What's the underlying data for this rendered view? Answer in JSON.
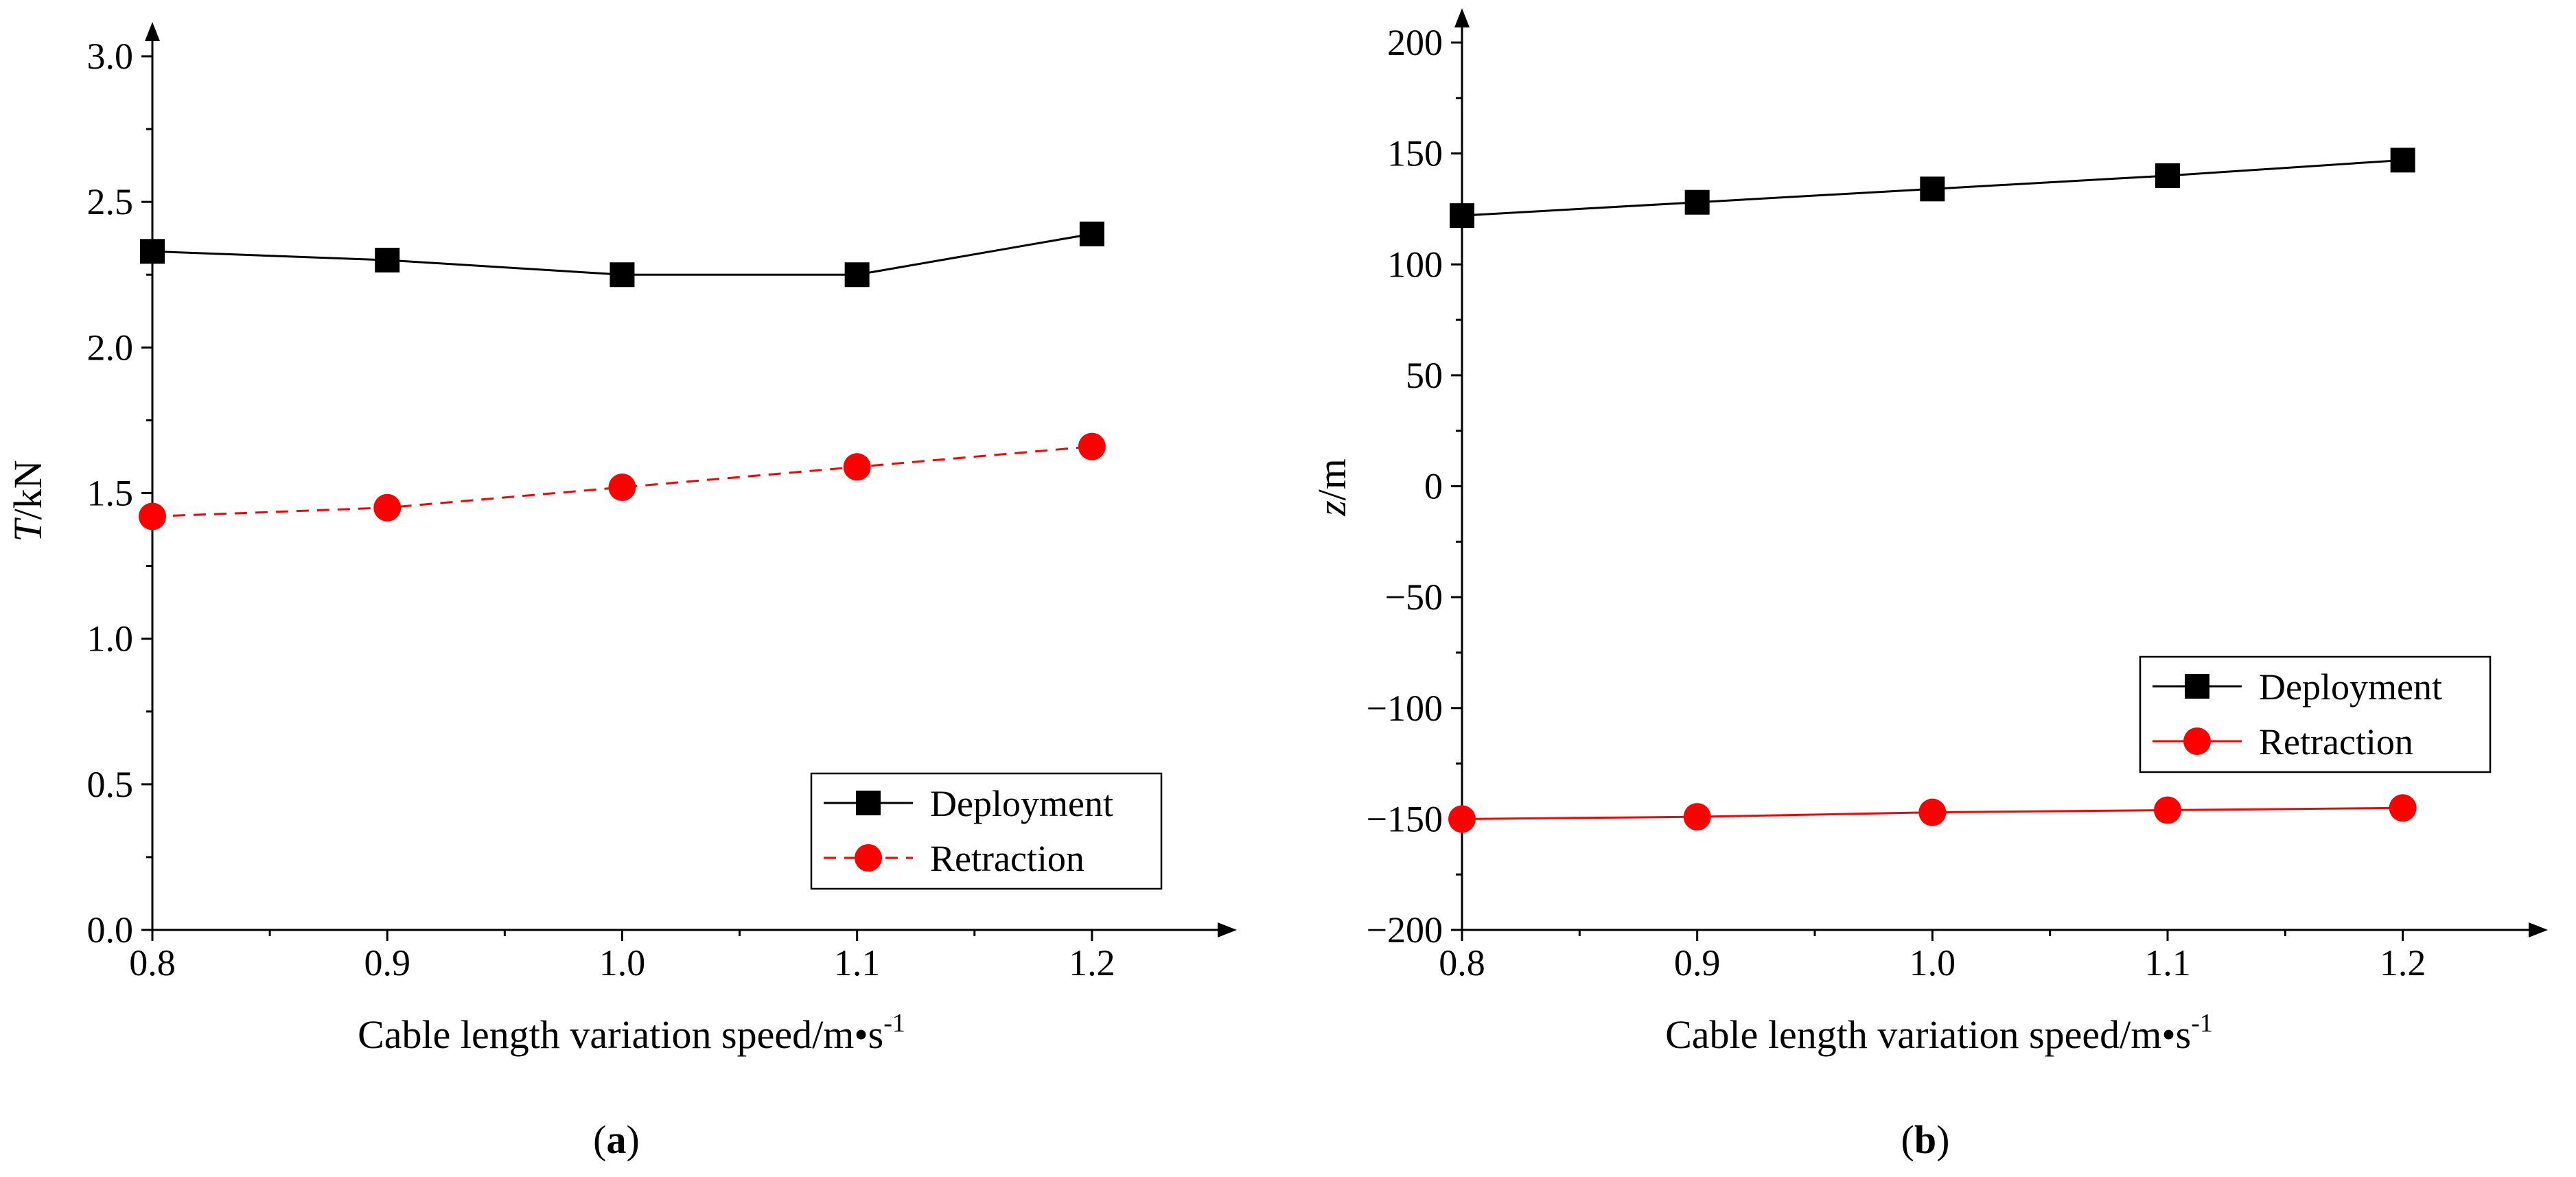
{
  "chart_data": [
    {
      "type": "line",
      "caption": "a",
      "title": "",
      "xlabel": "Cable length variation speed/m•s",
      "xlabel_sup": "-1",
      "ylabel_var": "T",
      "ylabel_unit": "/kN",
      "xlim": [
        0.8,
        1.25
      ],
      "ylim": [
        0.0,
        3.0
      ],
      "xticks": [
        "0.8",
        "0.9",
        "1.0",
        "1.1",
        "1.2"
      ],
      "yticks": [
        "0.0",
        "0.5",
        "1.0",
        "1.5",
        "2.0",
        "2.5",
        "3.0"
      ],
      "x": [
        0.8,
        0.9,
        1.0,
        1.1,
        1.2
      ],
      "series": [
        {
          "name": "Deployment",
          "values": [
            2.33,
            2.3,
            2.25,
            2.25,
            2.39
          ],
          "color": "#000000",
          "marker": "square",
          "dashed": false
        },
        {
          "name": "Retraction",
          "values": [
            1.42,
            1.45,
            1.52,
            1.59,
            1.66
          ],
          "color": "#ff0000",
          "marker": "circle",
          "dashed": true
        }
      ],
      "legend": "bottom-right"
    },
    {
      "type": "line",
      "caption": "b",
      "title": "",
      "xlabel": "Cable length variation speed/m•s",
      "xlabel_sup": "-1",
      "ylabel_var": "z",
      "ylabel_unit": "/m",
      "xlim": [
        0.8,
        1.25
      ],
      "ylim": [
        -200,
        200
      ],
      "xticks": [
        "0.8",
        "0.9",
        "1.0",
        "1.1",
        "1.2"
      ],
      "yticks": [
        "−200",
        "−150",
        "−100",
        "−50",
        "0",
        "50",
        "100",
        "150",
        "200"
      ],
      "x": [
        0.8,
        0.9,
        1.0,
        1.1,
        1.2
      ],
      "series": [
        {
          "name": "Deployment",
          "values": [
            122,
            128,
            134,
            140,
            147
          ],
          "color": "#000000",
          "marker": "square",
          "dashed": false
        },
        {
          "name": "Retraction",
          "values": [
            -150,
            -149,
            -147,
            -146,
            -145
          ],
          "color": "#ff0000",
          "marker": "circle",
          "dashed": false
        }
      ],
      "legend": "middle-right"
    }
  ]
}
